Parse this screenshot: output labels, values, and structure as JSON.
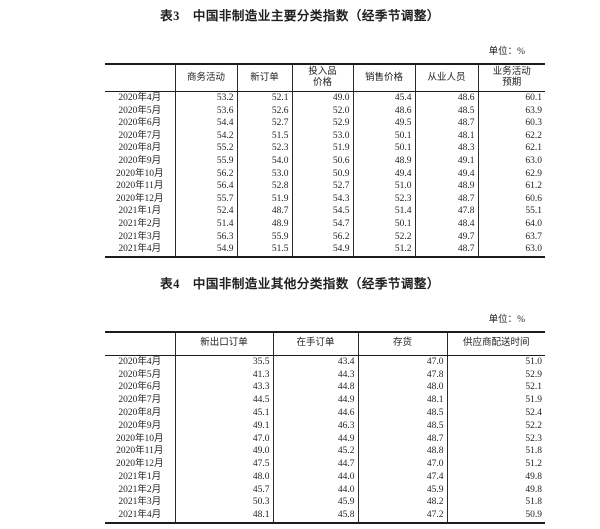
{
  "table3": {
    "title": "表3　中国非制造业主要分类指数（经季节调整）",
    "unit": "单位：%",
    "headers": [
      "",
      "商务活动",
      "新订单",
      "投入品\n价格",
      "销售价格",
      "从业人员",
      "业务活动\n预期"
    ],
    "rows": [
      [
        "2020年4月",
        "53.2",
        "52.1",
        "49.0",
        "45.4",
        "48.6",
        "60.1"
      ],
      [
        "2020年5月",
        "53.6",
        "52.6",
        "52.0",
        "48.6",
        "48.5",
        "63.9"
      ],
      [
        "2020年6月",
        "54.4",
        "52.7",
        "52.9",
        "49.5",
        "48.7",
        "60.3"
      ],
      [
        "2020年7月",
        "54.2",
        "51.5",
        "53.0",
        "50.1",
        "48.1",
        "62.2"
      ],
      [
        "2020年8月",
        "55.2",
        "52.3",
        "51.9",
        "50.1",
        "48.3",
        "62.1"
      ],
      [
        "2020年9月",
        "55.9",
        "54.0",
        "50.6",
        "48.9",
        "49.1",
        "63.0"
      ],
      [
        "2020年10月",
        "56.2",
        "53.0",
        "50.9",
        "49.4",
        "49.4",
        "62.9"
      ],
      [
        "2020年11月",
        "56.4",
        "52.8",
        "52.7",
        "51.0",
        "48.9",
        "61.2"
      ],
      [
        "2020年12月",
        "55.7",
        "51.9",
        "54.3",
        "52.3",
        "48.7",
        "60.6"
      ],
      [
        "2021年1月",
        "52.4",
        "48.7",
        "54.5",
        "51.4",
        "47.8",
        "55.1"
      ],
      [
        "2021年2月",
        "51.4",
        "48.9",
        "54.7",
        "50.1",
        "48.4",
        "64.0"
      ],
      [
        "2021年3月",
        "56.3",
        "55.9",
        "56.2",
        "52.2",
        "49.7",
        "63.7"
      ],
      [
        "2021年4月",
        "54.9",
        "51.5",
        "54.9",
        "51.2",
        "48.7",
        "63.0"
      ]
    ]
  },
  "table4": {
    "title": "表4　中国非制造业其他分类指数（经季节调整）",
    "unit": "单位：%",
    "headers": [
      "",
      "新出口订单",
      "在手订单",
      "存货",
      "供应商配送时间"
    ],
    "rows": [
      [
        "2020年4月",
        "35.5",
        "43.4",
        "47.0",
        "51.0"
      ],
      [
        "2020年5月",
        "41.3",
        "44.3",
        "47.8",
        "52.9"
      ],
      [
        "2020年6月",
        "43.3",
        "44.8",
        "48.0",
        "52.1"
      ],
      [
        "2020年7月",
        "44.5",
        "44.9",
        "48.1",
        "51.9"
      ],
      [
        "2020年8月",
        "45.1",
        "44.6",
        "48.5",
        "52.4"
      ],
      [
        "2020年9月",
        "49.1",
        "46.3",
        "48.5",
        "52.2"
      ],
      [
        "2020年10月",
        "47.0",
        "44.9",
        "48.7",
        "52.3"
      ],
      [
        "2020年11月",
        "49.0",
        "45.2",
        "48.8",
        "51.8"
      ],
      [
        "2020年12月",
        "47.5",
        "44.7",
        "47.0",
        "51.2"
      ],
      [
        "2021年1月",
        "48.0",
        "44.0",
        "47.4",
        "49.8"
      ],
      [
        "2021年2月",
        "45.7",
        "44.0",
        "45.9",
        "49.8"
      ],
      [
        "2021年3月",
        "50.3",
        "45.9",
        "48.2",
        "51.8"
      ],
      [
        "2021年4月",
        "48.1",
        "45.8",
        "47.2",
        "50.9"
      ]
    ]
  }
}
